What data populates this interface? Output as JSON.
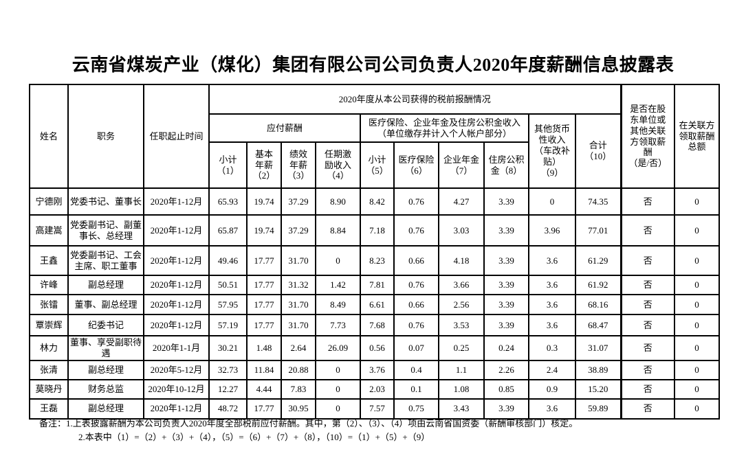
{
  "page": {
    "title": "云南省煤炭产业（煤化）集团有限公司公司负责人2020年度薪酬信息披露表"
  },
  "table": {
    "header": {
      "name": "姓名",
      "position": "职务",
      "term": "任职起止时间",
      "pretax_group": "2020年度从本公司获得的税前报酬情况",
      "payable_group": "应付薪酬",
      "insurance_group": "医疗保险、企业年金及住房公积金收入（单位缴存并计入个人帐户部分）",
      "subtotal_pay": "小计\n（1）",
      "base_salary": "基本\n年薪\n（2）",
      "performance_salary": "绩效\n年薪\n（3）",
      "term_incentive": "任期激\n励收入\n（4）",
      "subtotal_ins": "小计\n（5）",
      "medical_insurance": "医疗保险\n（6）",
      "enterprise_annuity": "企业年金\n（7）",
      "housing_fund": "住房公积\n金（8）",
      "other_income": "其他货币\n性收入\n（车改补\n贴）\n（9）",
      "total": "合计\n（10）",
      "related_party_flag": "是否在股\n东单位或\n其他关联\n方领取薪\n酬\n（是/否）",
      "related_party_total": "在关联方\n领取薪酬\n总额"
    },
    "rows": [
      [
        "宁德刚",
        "党委书记、董事长",
        "2020年1-12月",
        "65.93",
        "19.74",
        "37.29",
        "8.90",
        "8.42",
        "0.76",
        "4.27",
        "3.39",
        "0",
        "74.35",
        "否",
        "0"
      ],
      [
        "高建嵩",
        "党委副书记、副董事长、总经理",
        "2020年1-12月",
        "65.87",
        "19.74",
        "37.29",
        "8.84",
        "7.18",
        "0.76",
        "3.03",
        "3.39",
        "3.96",
        "77.01",
        "否",
        "0"
      ],
      [
        "王鑫",
        "党委副书记、工会主席、职工董事",
        "2020年1-12月",
        "49.46",
        "17.77",
        "31.70",
        "0",
        "8.23",
        "0.66",
        "4.18",
        "3.39",
        "3.6",
        "61.29",
        "否",
        "0"
      ],
      [
        "许峰",
        "副总经理",
        "2020年1-12月",
        "50.51",
        "17.77",
        "31.32",
        "1.42",
        "7.81",
        "0.76",
        "3.66",
        "3.39",
        "3.6",
        "61.92",
        "否",
        "0"
      ],
      [
        "张镭",
        "董事、副总经理",
        "2020年1-12月",
        "57.95",
        "17.77",
        "31.70",
        "8.49",
        "6.61",
        "0.66",
        "2.56",
        "3.39",
        "3.6",
        "68.16",
        "否",
        "0"
      ],
      [
        "覃崇辉",
        "纪委书记",
        "2020年1-12月",
        "57.19",
        "17.77",
        "31.70",
        "7.73",
        "7.68",
        "0.76",
        "3.53",
        "3.39",
        "3.6",
        "68.47",
        "否",
        "0"
      ],
      [
        "林力",
        "董事、享受副职待遇",
        "2020年1-1月",
        "30.21",
        "1.48",
        "2.64",
        "26.09",
        "0.56",
        "0.07",
        "0.25",
        "0.24",
        "0.3",
        "31.07",
        "否",
        "0"
      ],
      [
        "张清",
        "副总经理",
        "2020年5-12月",
        "32.73",
        "11.84",
        "20.88",
        "0",
        "3.76",
        "0.4",
        "1.1",
        "2.26",
        "2.4",
        "38.89",
        "否",
        "0"
      ],
      [
        "莫晓丹",
        "财务总监",
        "2020年10-12月",
        "12.27",
        "4.44",
        "7.83",
        "0",
        "2.03",
        "0.1",
        "1.08",
        "0.85",
        "0.9",
        "15.20",
        "否",
        "0"
      ],
      [
        "王磊",
        "副总经理",
        "2020年1-12月",
        "48.72",
        "17.77",
        "30.95",
        "0",
        "7.57",
        "0.75",
        "3.43",
        "3.39",
        "3.6",
        "59.89",
        "否",
        "0"
      ]
    ]
  },
  "notes": {
    "line1": "备注：1.上表披露薪酬为本公司负责人2020年度全部税前应付薪酬。其中，第（2）、（3）、（4）项由云南省国资委（薪酬审核部门）核定。",
    "line2": "2.本表中（1）=（2）+（3）+（4），（5）=（6）+（7）+（8），（10）=（1）+（5）+（9）"
  }
}
